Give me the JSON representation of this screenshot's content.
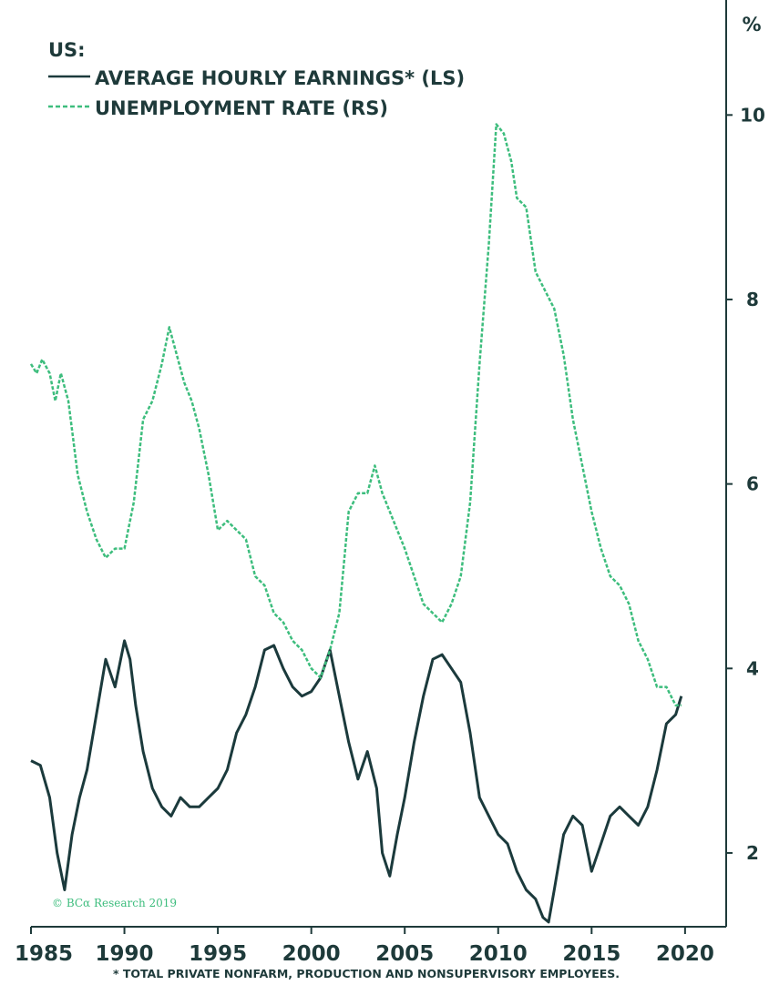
{
  "chart_data": {
    "type": "line",
    "legend": {
      "heading": "US:",
      "placement": "top-left"
    },
    "right_axis_unit": "%",
    "x_ticks": [
      "1985",
      "1990",
      "1995",
      "2000",
      "2005",
      "2010",
      "2015",
      "2020"
    ],
    "xlim": [
      1985,
      2022.2
    ],
    "right_axis": {
      "ticks": [
        "2",
        "4",
        "6",
        "8",
        "10"
      ],
      "ylim": [
        1.2,
        11.0
      ]
    },
    "left_axis": {
      "ylim": [
        1.2,
        11.0
      ],
      "labels_shown": false
    },
    "grid": false,
    "copyright": "© BCα Research 2019",
    "footnote": "* TOTAL PRIVATE NONFARM, PRODUCTION AND NONSUPERVISORY EMPLOYEES.",
    "series": [
      {
        "name": "AVERAGE HOURLY EARNINGS* (LS)",
        "style": "solid",
        "color": "#1b3a3c",
        "x": [
          1985.0,
          1985.5,
          1986.0,
          1986.4,
          1986.8,
          1987.2,
          1987.6,
          1988.0,
          1988.5,
          1989.0,
          1989.5,
          1990.0,
          1990.3,
          1990.6,
          1991.0,
          1991.5,
          1992.0,
          1992.5,
          1993.0,
          1993.5,
          1994.0,
          1994.5,
          1995.0,
          1995.5,
          1996.0,
          1996.5,
          1997.0,
          1997.5,
          1998.0,
          1998.5,
          1999.0,
          1999.5,
          2000.0,
          2000.5,
          2001.0,
          2001.5,
          2002.0,
          2002.5,
          2003.0,
          2003.5,
          2003.8,
          2004.2,
          2004.6,
          2005.0,
          2005.5,
          2006.0,
          2006.5,
          2007.0,
          2007.5,
          2008.0,
          2008.5,
          2009.0,
          2009.5,
          2010.0,
          2010.5,
          2011.0,
          2011.5,
          2012.0,
          2012.4,
          2012.7,
          2013.0,
          2013.5,
          2014.0,
          2014.5,
          2015.0,
          2015.5,
          2016.0,
          2016.5,
          2017.0,
          2017.5,
          2018.0,
          2018.5,
          2019.0,
          2019.5,
          2019.8
        ],
        "values": [
          3.0,
          2.95,
          2.6,
          2.0,
          1.6,
          2.2,
          2.6,
          2.9,
          3.5,
          4.1,
          3.8,
          4.3,
          4.1,
          3.6,
          3.1,
          2.7,
          2.5,
          2.4,
          2.6,
          2.5,
          2.5,
          2.6,
          2.7,
          2.9,
          3.3,
          3.5,
          3.8,
          4.2,
          4.25,
          4.0,
          3.8,
          3.7,
          3.75,
          3.9,
          4.2,
          3.7,
          3.2,
          2.8,
          3.1,
          2.7,
          2.0,
          1.75,
          2.2,
          2.6,
          3.2,
          3.7,
          4.1,
          4.15,
          4.0,
          3.85,
          3.3,
          2.6,
          2.4,
          2.2,
          2.1,
          1.8,
          1.6,
          1.5,
          1.3,
          1.25,
          1.6,
          2.2,
          2.4,
          2.3,
          1.8,
          2.1,
          2.4,
          2.5,
          2.4,
          2.3,
          2.5,
          2.9,
          3.4,
          3.5,
          3.7
        ]
      },
      {
        "name": "UNEMPLOYMENT RATE (RS)",
        "style": "dashed",
        "color": "#3dbd7d",
        "x": [
          1985.0,
          1985.3,
          1985.6,
          1986.0,
          1986.3,
          1986.6,
          1987.0,
          1987.5,
          1988.0,
          1988.5,
          1989.0,
          1989.5,
          1990.0,
          1990.5,
          1991.0,
          1991.5,
          1992.0,
          1992.4,
          1992.8,
          1993.2,
          1993.6,
          1994.0,
          1994.5,
          1995.0,
          1995.5,
          1996.0,
          1996.5,
          1997.0,
          1997.5,
          1998.0,
          1998.5,
          1999.0,
          1999.5,
          2000.0,
          2000.5,
          2001.0,
          2001.5,
          2002.0,
          2002.5,
          2003.0,
          2003.4,
          2003.8,
          2004.2,
          2004.6,
          2005.0,
          2005.5,
          2006.0,
          2006.5,
          2007.0,
          2007.5,
          2008.0,
          2008.5,
          2009.0,
          2009.5,
          2009.9,
          2010.3,
          2010.7,
          2011.0,
          2011.5,
          2012.0,
          2012.5,
          2013.0,
          2013.5,
          2014.0,
          2014.5,
          2015.0,
          2015.5,
          2016.0,
          2016.5,
          2017.0,
          2017.5,
          2018.0,
          2018.5,
          2019.0,
          2019.5,
          2019.8
        ],
        "values": [
          7.3,
          7.2,
          7.35,
          7.2,
          6.9,
          7.2,
          6.9,
          6.1,
          5.7,
          5.4,
          5.2,
          5.3,
          5.3,
          5.8,
          6.7,
          6.9,
          7.3,
          7.7,
          7.4,
          7.1,
          6.9,
          6.6,
          6.1,
          5.5,
          5.6,
          5.5,
          5.4,
          5.0,
          4.9,
          4.6,
          4.5,
          4.3,
          4.2,
          4.0,
          3.9,
          4.2,
          4.6,
          5.7,
          5.9,
          5.9,
          6.2,
          5.9,
          5.7,
          5.5,
          5.3,
          5.0,
          4.7,
          4.6,
          4.5,
          4.7,
          5.0,
          5.8,
          7.3,
          8.6,
          9.9,
          9.8,
          9.5,
          9.1,
          9.0,
          8.3,
          8.1,
          7.9,
          7.4,
          6.7,
          6.2,
          5.7,
          5.3,
          5.0,
          4.9,
          4.7,
          4.3,
          4.1,
          3.8,
          3.8,
          3.6,
          3.6
        ]
      }
    ]
  }
}
